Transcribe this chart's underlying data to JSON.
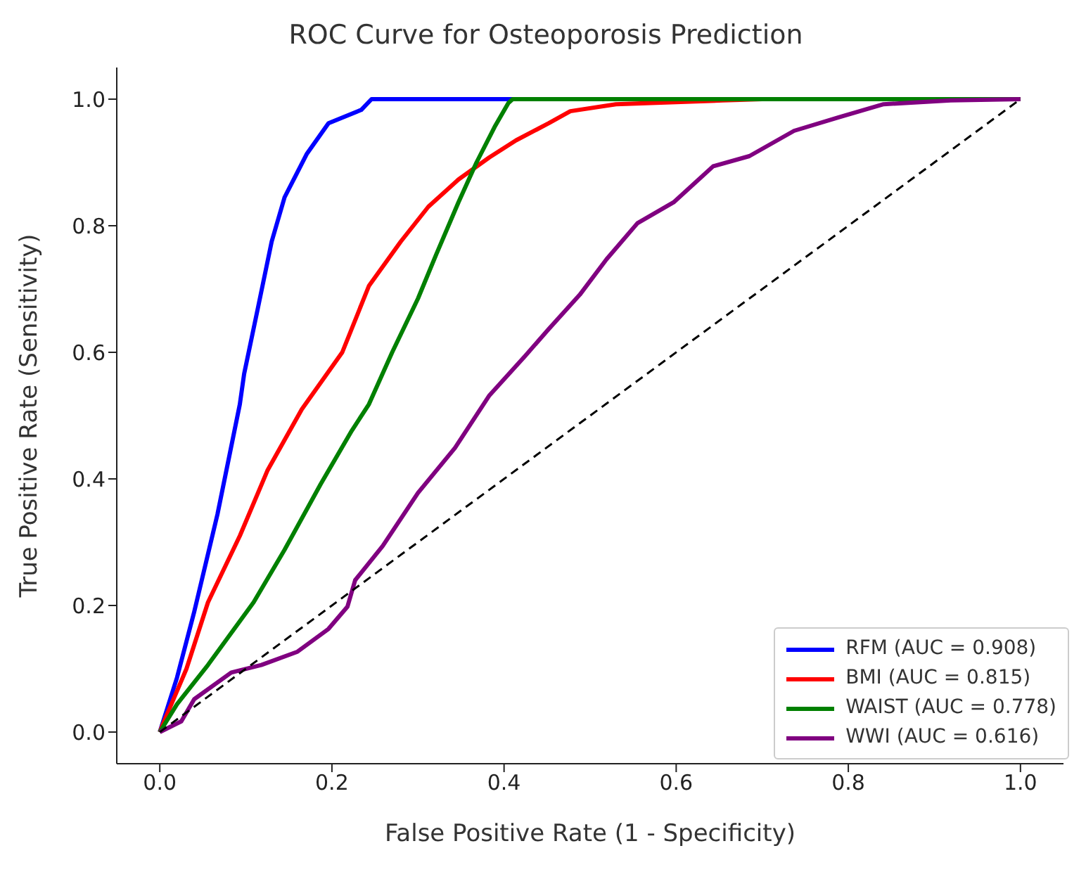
{
  "chart_data": {
    "type": "line",
    "title": "ROC Curve for Osteoporosis Prediction",
    "xlabel": "False Positive Rate (1 - Specificity)",
    "ylabel": "True Positive Rate (Sensitivity)",
    "xlim": [
      -0.05,
      1.05
    ],
    "ylim": [
      -0.05,
      1.05
    ],
    "xticks": [
      {
        "value": 0,
        "label": "0.0"
      },
      {
        "value": 0.2,
        "label": "0.2"
      },
      {
        "value": 0.4,
        "label": "0.4"
      },
      {
        "value": 0.6,
        "label": "0.6"
      },
      {
        "value": 0.8,
        "label": "0.8"
      },
      {
        "value": 1,
        "label": "1.0"
      }
    ],
    "yticks": [
      {
        "value": 0,
        "label": "0.0"
      },
      {
        "value": 0.2,
        "label": "0.2"
      },
      {
        "value": 0.4,
        "label": "0.4"
      },
      {
        "value": 0.6,
        "label": "0.6"
      },
      {
        "value": 0.8,
        "label": "0.8"
      },
      {
        "value": 1,
        "label": "1.0"
      }
    ],
    "grid": false,
    "legend": "bottom right",
    "marker": "none",
    "series": [
      {
        "name": "RFM (AUC = 0.908)",
        "color": "#0000ff",
        "x": [
          0,
          0.02,
          0.04,
          0.067,
          0.093,
          0.098,
          0.114,
          0.13,
          0.145,
          0.171,
          0.196,
          0.234,
          0.246,
          1
        ],
        "values": [
          0,
          0.086,
          0.19,
          0.344,
          0.518,
          0.566,
          0.67,
          0.775,
          0.845,
          0.914,
          0.962,
          0.983,
          1,
          1
        ]
      },
      {
        "name": "BMI (AUC = 0.815)",
        "color": "#ff0000",
        "x": [
          0,
          0.005,
          0.031,
          0.056,
          0.093,
          0.125,
          0.165,
          0.212,
          0.243,
          0.28,
          0.312,
          0.347,
          0.383,
          0.414,
          0.452,
          0.477,
          0.53,
          0.654,
          0.7,
          1
        ],
        "values": [
          0,
          0.017,
          0.1,
          0.205,
          0.31,
          0.413,
          0.51,
          0.6,
          0.705,
          0.775,
          0.83,
          0.873,
          0.908,
          0.935,
          0.962,
          0.981,
          0.992,
          0.998,
          1,
          1
        ]
      },
      {
        "name": "WAIST (AUC = 0.778)",
        "color": "#008000",
        "x": [
          0,
          0.02,
          0.056,
          0.109,
          0.145,
          0.187,
          0.223,
          0.243,
          0.27,
          0.3,
          0.321,
          0.347,
          0.368,
          0.389,
          0.405,
          0.41,
          1
        ],
        "values": [
          0,
          0.044,
          0.106,
          0.205,
          0.288,
          0.392,
          0.476,
          0.518,
          0.6,
          0.685,
          0.754,
          0.837,
          0.9,
          0.956,
          0.994,
          1,
          1
        ]
      },
      {
        "name": "WWI (AUC = 0.616)",
        "color": "#800080",
        "x": [
          0,
          0.025,
          0.04,
          0.083,
          0.118,
          0.16,
          0.196,
          0.218,
          0.227,
          0.259,
          0.3,
          0.343,
          0.383,
          0.425,
          0.452,
          0.488,
          0.519,
          0.555,
          0.597,
          0.643,
          0.685,
          0.737,
          0.788,
          0.841,
          0.919,
          1
        ],
        "values": [
          0,
          0.017,
          0.052,
          0.094,
          0.106,
          0.127,
          0.163,
          0.198,
          0.24,
          0.294,
          0.378,
          0.449,
          0.532,
          0.595,
          0.637,
          0.691,
          0.747,
          0.804,
          0.837,
          0.894,
          0.91,
          0.95,
          0.971,
          0.992,
          0.998,
          1
        ]
      },
      {
        "color": "#000000",
        "line_style": "dashed",
        "x": [
          0,
          1
        ],
        "values": [
          0,
          1
        ]
      }
    ]
  }
}
